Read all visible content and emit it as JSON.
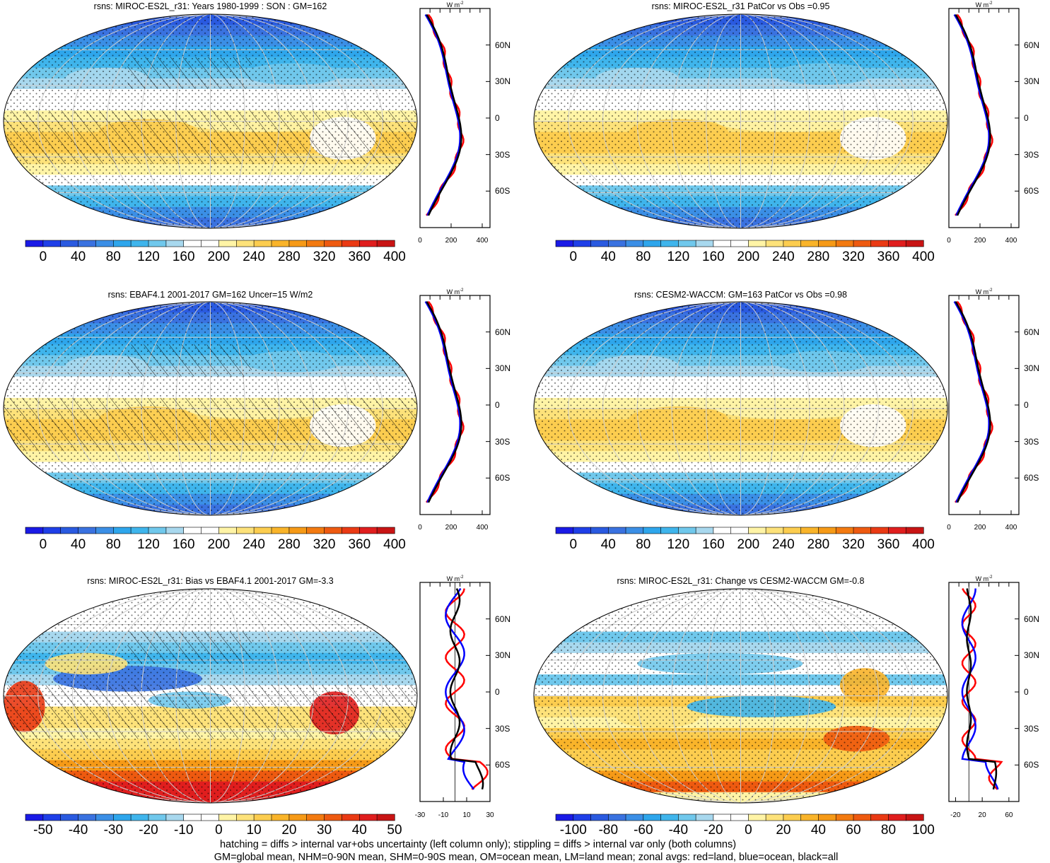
{
  "chart_data": {
    "type": "heatmap",
    "description_shared": {
      "zonal_unit": "W m",
      "zonal_unit_sup": "-2",
      "lat_ticks": [
        "60N",
        "30N",
        "0",
        "30S",
        "60S"
      ],
      "colors": {
        "land": "#ff0000",
        "ocean": "#0000ff",
        "all": "#000000"
      }
    },
    "panels": [
      {
        "id": "p1",
        "title": "rsns: MIROC-ES2L_r31: Years 1980-1999 : SON : GM=162",
        "colorbar_ticks": [
          "0",
          "40",
          "80",
          "120",
          "160",
          "200",
          "240",
          "280",
          "320",
          "360",
          "400"
        ],
        "zonal_xticks": [
          "0",
          "200",
          "400"
        ],
        "zonal_xlim": [
          0,
          450
        ],
        "kind": "abs",
        "hatching": true
      },
      {
        "id": "p2",
        "title": "rsns: MIROC-ES2L_r31 PatCor vs Obs =0.95",
        "colorbar_ticks": [
          "0",
          "40",
          "80",
          "120",
          "160",
          "200",
          "240",
          "280",
          "320",
          "360",
          "400"
        ],
        "zonal_xticks": [
          "0",
          "200",
          "400"
        ],
        "zonal_xlim": [
          0,
          450
        ],
        "kind": "abs",
        "hatching": false
      },
      {
        "id": "p3",
        "title": "rsns: EBAF4.1 2001-2017 GM=162 Uncer=15 W/m2",
        "colorbar_ticks": [
          "0",
          "40",
          "80",
          "120",
          "160",
          "200",
          "240",
          "280",
          "320",
          "360",
          "400"
        ],
        "zonal_xticks": [
          "0",
          "200",
          "400"
        ],
        "zonal_xlim": [
          0,
          450
        ],
        "kind": "abs",
        "hatching": true
      },
      {
        "id": "p4",
        "title": "rsns: CESM2-WACCM: GM=163 PatCor vs Obs =0.98",
        "colorbar_ticks": [
          "0",
          "40",
          "80",
          "120",
          "160",
          "200",
          "240",
          "280",
          "320",
          "360",
          "400"
        ],
        "zonal_xticks": [
          "0",
          "200",
          "400"
        ],
        "zonal_xlim": [
          0,
          450
        ],
        "kind": "abs",
        "hatching": false
      },
      {
        "id": "p5",
        "title": "rsns: MIROC-ES2L_r31: Bias vs EBAF4.1 2001-2017  GM=-3.3",
        "colorbar_ticks": [
          "-50",
          "-40",
          "-30",
          "-20",
          "-10",
          "0",
          "10",
          "20",
          "30",
          "40",
          "50"
        ],
        "zonal_xticks": [
          "-30",
          "-10",
          "10",
          "30"
        ],
        "zonal_xlim": [
          -30,
          30
        ],
        "kind": "bias",
        "hatching": true
      },
      {
        "id": "p6",
        "title": "rsns: MIROC-ES2L_r31: Change vs CESM2-WACCM GM=-0.8",
        "colorbar_ticks": [
          "-100",
          "-80",
          "-60",
          "-40",
          "-20",
          "0",
          "20",
          "40",
          "60",
          "80",
          "100"
        ],
        "zonal_xticks": [
          "-20",
          "20",
          "60"
        ],
        "zonal_xlim": [
          -30,
          75
        ],
        "kind": "change",
        "hatching": false
      }
    ],
    "colormap": [
      "#1a1ae6",
      "#1f3fe8",
      "#2a5ae0",
      "#3a72e0",
      "#3b8fe6",
      "#2ea6ec",
      "#3fb5ec",
      "#70c8ec",
      "#a8d8ee",
      "#ffffff",
      "#ffffff",
      "#fff4a6",
      "#fde27a",
      "#fccd4f",
      "#f9b42a",
      "#f69a17",
      "#f37a10",
      "#ee5a10",
      "#ea3a14",
      "#e01e1e",
      "#c81414"
    ]
  },
  "footer": {
    "line1": "hatching = diffs > internal var+obs uncertainty (left column only); stippling = diffs > internal var only (both columns)",
    "line2": "GM=global mean, NHM=0-90N mean, SHM=0-90S mean, OM=ocean mean, LM=land mean; zonal avgs: red=land, blue=ocean, black=all"
  }
}
